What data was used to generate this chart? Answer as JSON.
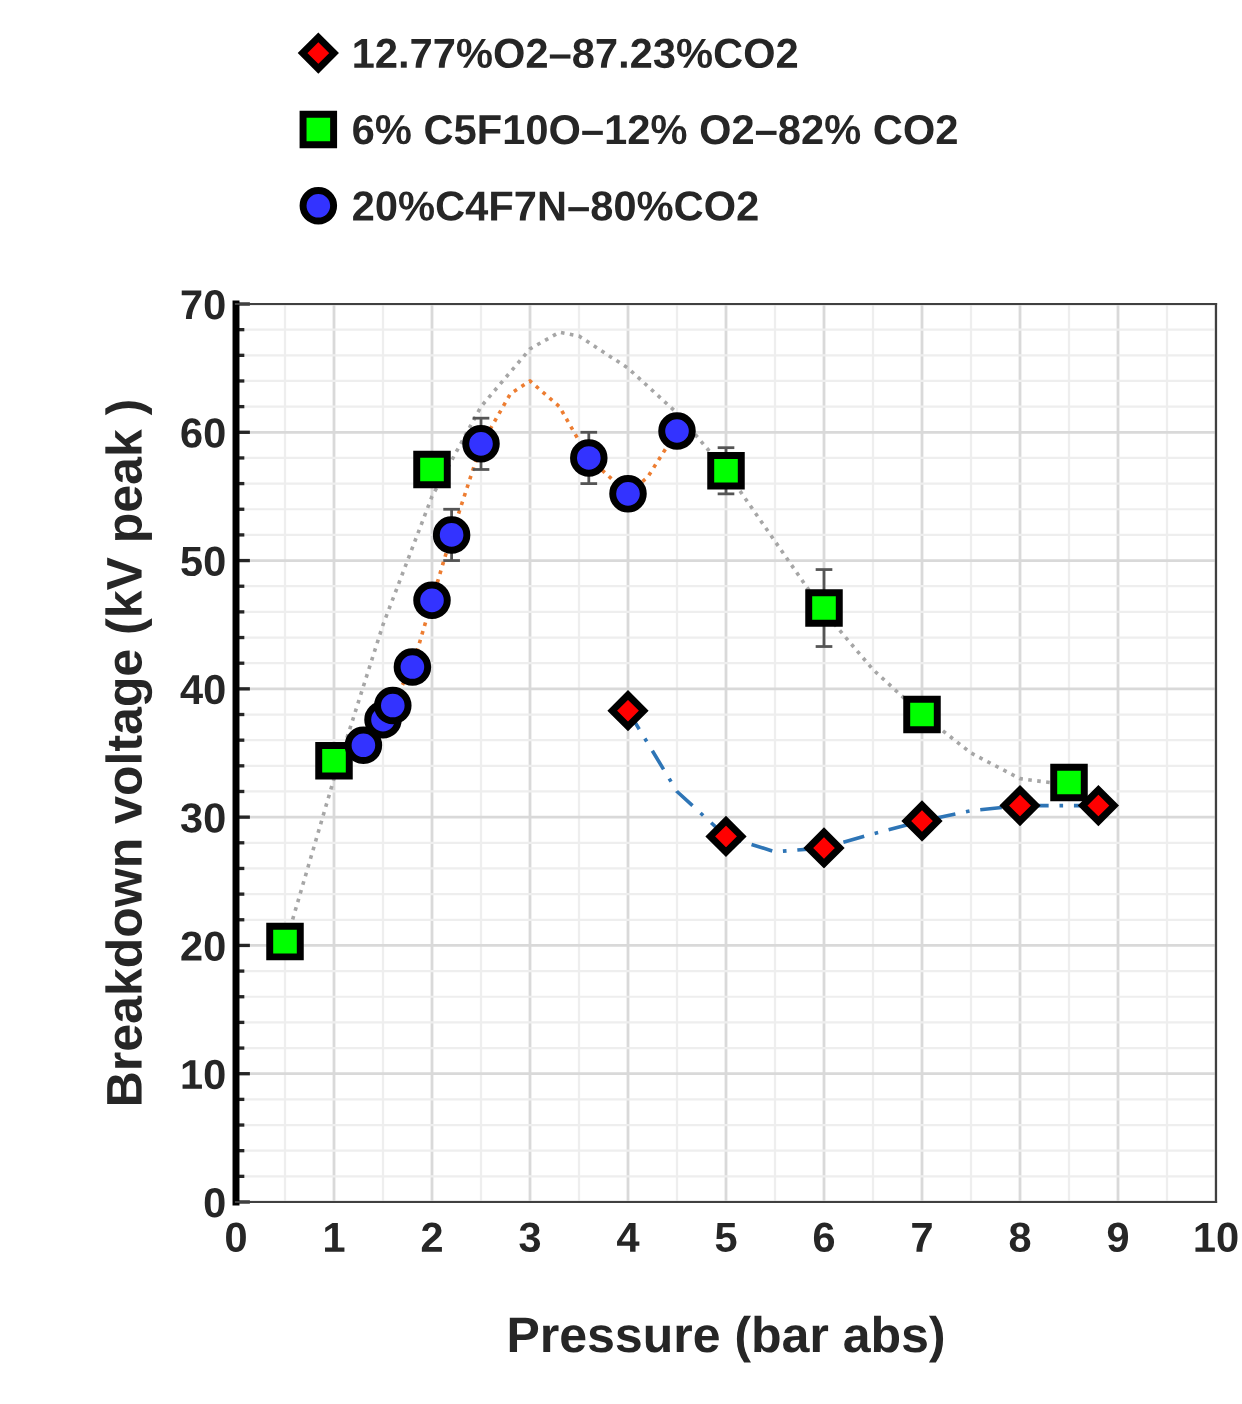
{
  "chart_data": {
    "type": "scatter",
    "xlabel": "Pressure (bar abs)",
    "ylabel": "Breakdown voltage (kV peak )",
    "xlim": [
      0,
      10
    ],
    "xticks": [
      0,
      1,
      2,
      3,
      4,
      5,
      6,
      7,
      8,
      9,
      10
    ],
    "ylim": [
      0,
      70
    ],
    "yticks": [
      0,
      10,
      20,
      30,
      40,
      50,
      60,
      70
    ],
    "grid": true,
    "legend": "top",
    "series": [
      {
        "name": "12.77%O2–87.23%CO2",
        "marker": "diamond",
        "color": "#ff0000",
        "x": [
          4,
          5,
          6,
          7,
          8,
          8.8
        ],
        "values": [
          38.3,
          28.5,
          27.6,
          29.7,
          30.9,
          30.9
        ]
      },
      {
        "name": "6% C5F10O–12% O2–82% CO2",
        "marker": "square",
        "color": "#00ff00",
        "x": [
          0.5,
          1,
          2,
          5,
          6,
          7,
          8.5
        ],
        "values": [
          20.3,
          34.4,
          57.1,
          57,
          46.3,
          38,
          32.7
        ],
        "errors": [
          null,
          null,
          null,
          1.8,
          3,
          null,
          null
        ]
      },
      {
        "name": "20%C4F7N–80%CO2",
        "marker": "circle",
        "color": "#3333ff",
        "x": [
          1.3,
          1.5,
          1.6,
          1.8,
          2,
          2.2,
          2.5,
          3.6,
          4,
          4.5
        ],
        "values": [
          35.6,
          37.6,
          38.7,
          41.7,
          46.9,
          52,
          59.1,
          58,
          55.2,
          60.1
        ],
        "errors": [
          null,
          null,
          null,
          null,
          null,
          2,
          2,
          2,
          null,
          null
        ]
      },
      {
        "type": "line",
        "line_style": "dotted",
        "color": "#a6a6a6",
        "x": [
          0.5,
          1,
          1.5,
          2,
          2.5,
          3,
          3.3,
          3.5,
          4,
          4.5,
          5,
          5.5,
          6,
          6.5,
          7,
          7.5,
          8,
          8.5
        ],
        "values": [
          20,
          33,
          45,
          55,
          62,
          66.5,
          67.8,
          67.5,
          65,
          61.5,
          57,
          51.5,
          46,
          41.5,
          38,
          35,
          33,
          32.5
        ]
      },
      {
        "type": "line",
        "line_style": "dotted",
        "color": "#ed7d31",
        "x": [
          1.3,
          1.5,
          1.8,
          2,
          2.2,
          2.5,
          2.8,
          3,
          3.3,
          3.6,
          4,
          4.2,
          4.5
        ],
        "values": [
          35.6,
          37.6,
          41.7,
          46.9,
          52,
          59,
          63,
          64,
          62,
          58,
          55.2,
          56.5,
          60.1
        ]
      },
      {
        "type": "line",
        "line_style": "dashed",
        "color": "#2e75b6",
        "x": [
          4,
          4.5,
          5,
          5.5,
          6,
          6.5,
          7,
          7.5,
          8,
          8.5,
          8.8
        ],
        "values": [
          38.3,
          32,
          28.5,
          27.3,
          27.6,
          28.7,
          29.7,
          30.5,
          30.9,
          30.9,
          30.9
        ]
      }
    ]
  }
}
